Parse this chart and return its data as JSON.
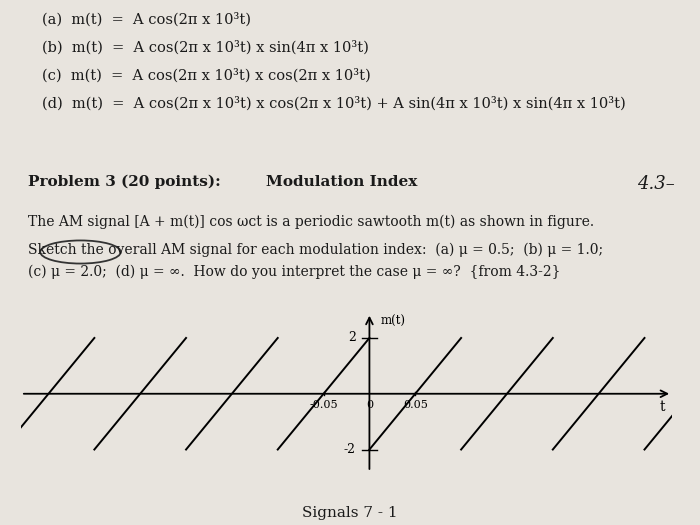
{
  "bg_color": "#e8e4de",
  "title_problem": "Problem 3 (20 points):",
  "title_topic": "Modulation Index",
  "corner_label": "4.3–",
  "line_a": "(a)  m(t)  =  A cos(2π x 10³t)",
  "line_b": "(b)  m(t)  =  A cos(2π x 10³t) x sin(4π x 10³t)",
  "line_c": "(c)  m(t)  =  A cos(2π x 10³t) x cos(2π x 10³t)",
  "line_d": "(d)  m(t)  =  A cos(2π x 10³t) x cos(2π x 10³t) + A sin(4π x 10³t) x sin(4π x 10³t)",
  "body_text_1": "The AM signal [A + m(t)] cos ωᴄt is a periodic sawtooth m(t) as shown in figure.",
  "body_text_2": "Sketch the overall AM signal for each modulation index:  (a) μ = 0.5;  (b) μ = 1.0;",
  "body_text_3": "(c) μ = 2.0;  (d) μ = ∞.  How do you interpret the case μ = ∞?  {from 4.3-2}",
  "sawtooth_period": 0.1,
  "sawtooth_amplitude": 2,
  "xlabel": "t",
  "ylabel": "m(t)",
  "footer": "Signals 7 - 1",
  "text_color": "#1a1a1a",
  "eq_fontsize": 10.5,
  "body_fontsize": 10.0,
  "title_fontsize": 11.0
}
